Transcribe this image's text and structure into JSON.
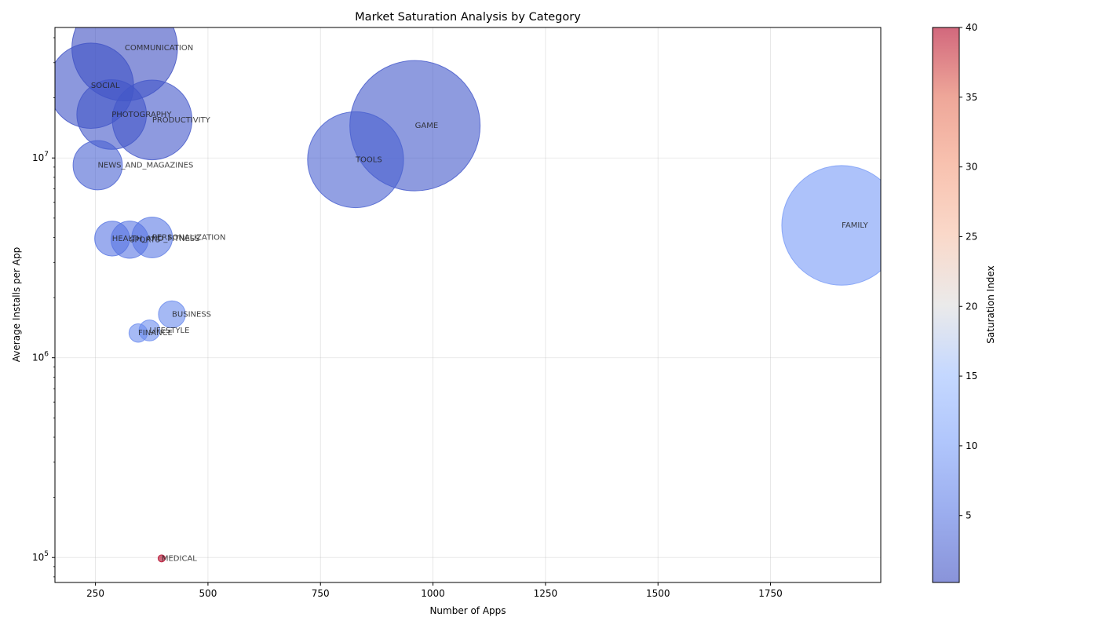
{
  "chart_data": {
    "type": "scatter",
    "title": "Market Saturation Analysis by Category",
    "xlabel": "Number of Apps",
    "ylabel": "Average Installs per App",
    "colorbar_label": "Saturation Index",
    "x_scale": "linear",
    "y_scale": "log",
    "xlim": [
      160,
      1995
    ],
    "ylim": [
      75000,
      45000000
    ],
    "x_ticks": [
      250,
      500,
      750,
      1000,
      1250,
      1500,
      1750
    ],
    "y_ticks": [
      {
        "value": 100000,
        "base": "10",
        "exp": "5"
      },
      {
        "value": 1000000,
        "base": "10",
        "exp": "6"
      },
      {
        "value": 10000000,
        "base": "10",
        "exp": "7"
      }
    ],
    "colorbar_range": [
      0.2,
      40
    ],
    "colorbar_ticks": [
      5,
      10,
      15,
      20,
      25,
      30,
      35,
      40
    ],
    "grid": true,
    "colormap": "coolwarm",
    "points": [
      {
        "label": "COMMUNICATION",
        "x": 315,
        "y": 35500000,
        "size": 460,
        "saturation": 0.5
      },
      {
        "label": "SOCIAL",
        "x": 240,
        "y": 23000000,
        "size": 300,
        "saturation": 1.0
      },
      {
        "label": "PHOTOGRAPHY",
        "x": 286,
        "y": 16500000,
        "size": 200,
        "saturation": 1.4
      },
      {
        "label": "PRODUCTIVITY",
        "x": 376,
        "y": 15500000,
        "size": 262,
        "saturation": 1.5
      },
      {
        "label": "GAME",
        "x": 960,
        "y": 14500000,
        "size": 700,
        "saturation": 1.6
      },
      {
        "label": "TOOLS",
        "x": 828,
        "y": 9800000,
        "size": 380,
        "saturation": 2.5
      },
      {
        "label": "NEWS_AND_MAGAZINES",
        "x": 255,
        "y": 9200000,
        "size": 100,
        "saturation": 2.7
      },
      {
        "label": "FAMILY",
        "x": 1908,
        "y": 4600000,
        "size": 590,
        "saturation": 9.5
      },
      {
        "label": "HEALTH_AND_FITNESS",
        "x": 287,
        "y": 3950000,
        "size": 50,
        "saturation": 5.0
      },
      {
        "label": "SPORTS",
        "x": 326,
        "y": 3900000,
        "size": 57,
        "saturation": 5.0
      },
      {
        "label": "PERSONALIZATION",
        "x": 376,
        "y": 4000000,
        "size": 68,
        "saturation": 5.5
      },
      {
        "label": "BUSINESS",
        "x": 420,
        "y": 1650000,
        "size": 30,
        "saturation": 7.5
      },
      {
        "label": "LIFESTYLE",
        "x": 370,
        "y": 1370000,
        "size": 18,
        "saturation": 7.8
      },
      {
        "label": "FINANCE",
        "x": 345,
        "y": 1330000,
        "size": 14,
        "saturation": 7.8
      },
      {
        "label": "MEDICAL",
        "x": 397,
        "y": 99000,
        "size": 1,
        "saturation": 40
      }
    ]
  }
}
